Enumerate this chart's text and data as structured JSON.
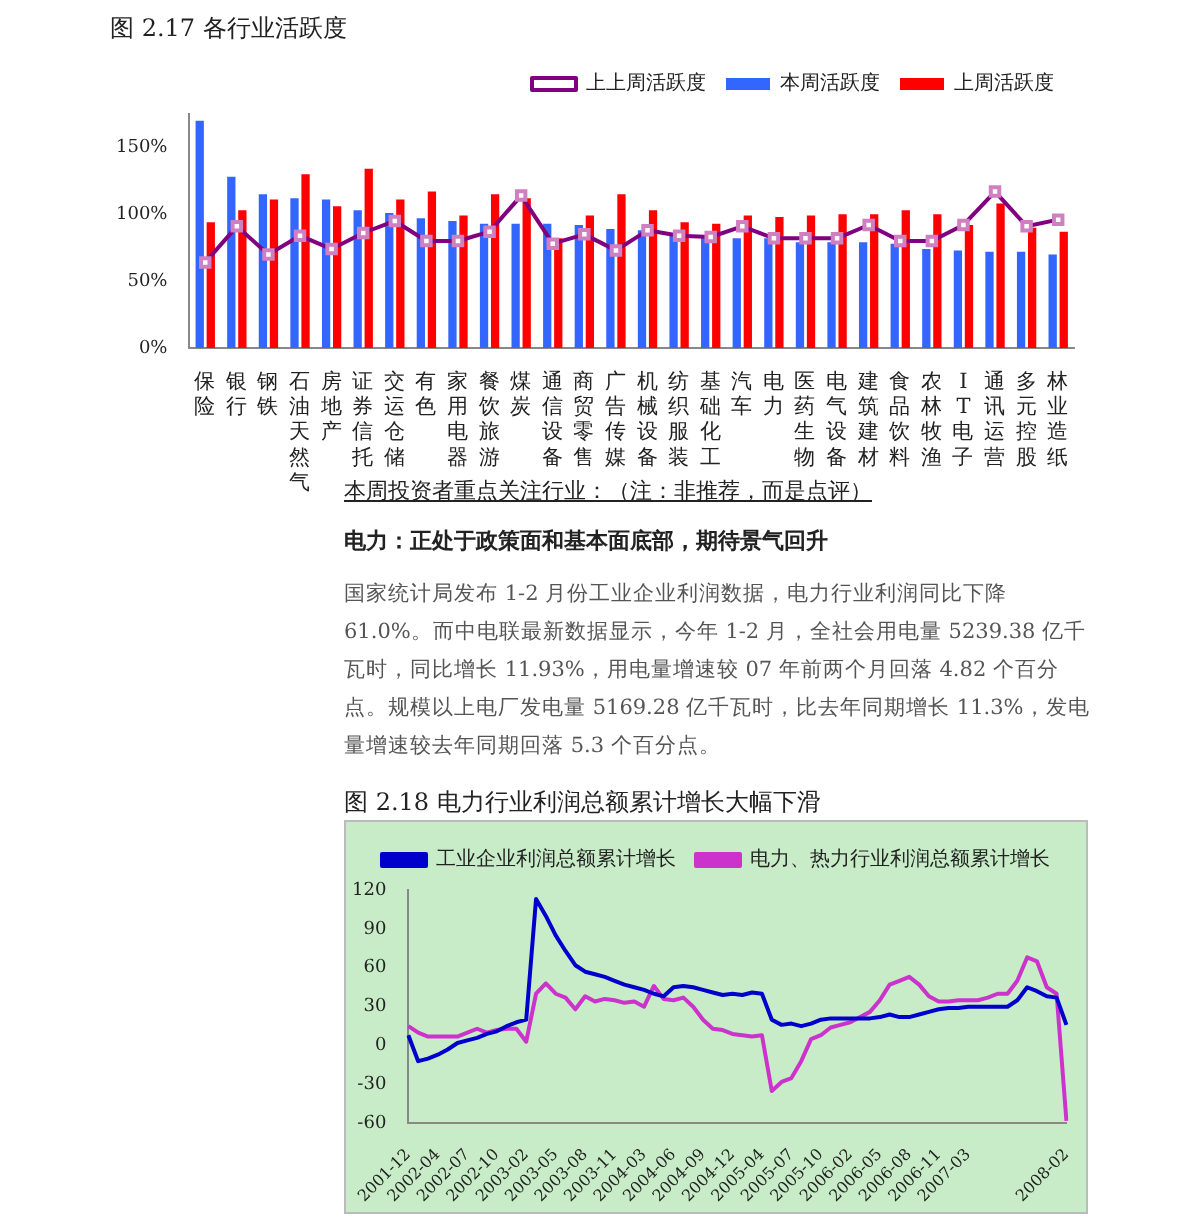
{
  "chart_data": [
    {
      "type": "bar",
      "title": "图 2.17    各行业活跃度",
      "categories": [
        "保险",
        "银行",
        "钢铁",
        "石油天然气",
        "房地产",
        "证券信托",
        "交运仓储",
        "有色",
        "家用电器",
        "餐饮旅游",
        "煤炭",
        "通信设备",
        "商贸零售",
        "广告传媒",
        "机械设备",
        "纺织服装",
        "基础化工",
        "汽车",
        "电力",
        "医药生物",
        "电气设备",
        "建筑建材",
        "食品饮料",
        "农林牧渔",
        "IT电子",
        "通讯运营",
        "多元控股",
        "林业造纸"
      ],
      "series": [
        {
          "name": "本周活跃度",
          "color": "#3366ff",
          "values": [
            170,
            128,
            115,
            112,
            111,
            103,
            101,
            97,
            95,
            93,
            93,
            93,
            92,
            89,
            88,
            85,
            84,
            82,
            82,
            79,
            79,
            79,
            78,
            74,
            73,
            72,
            72,
            70
          ]
        },
        {
          "name": "上周活跃度",
          "color": "#ff0000",
          "values": [
            94,
            103,
            111,
            130,
            106,
            134,
            111,
            117,
            99,
            115,
            112,
            82,
            99,
            115,
            103,
            94,
            93,
            99,
            98,
            99,
            100,
            100,
            103,
            100,
            92,
            108,
            90,
            87
          ]
        },
        {
          "name": "上上周活跃度",
          "type": "line",
          "color": "#800080",
          "marker": "square",
          "values": [
            64,
            91,
            70,
            84,
            74,
            86,
            95,
            80,
            80,
            87,
            114,
            78,
            85,
            73,
            88,
            84,
            83,
            91,
            82,
            82,
            82,
            92,
            80,
            80,
            92,
            117,
            91,
            96
          ]
        }
      ],
      "ylim": [
        0,
        175
      ],
      "yticks": [
        {
          "value": 0,
          "label": "0%"
        },
        {
          "value": 50,
          "label": "50%"
        },
        {
          "value": 100,
          "label": "100%"
        },
        {
          "value": 150,
          "label": "150%"
        }
      ],
      "grid": false,
      "legend": "top right"
    },
    {
      "type": "line",
      "title": "图  2.18    电力行业利润总额累计增长大幅下滑",
      "annotations": [
        "本周投资者重点关注行业：（注：非推荐，而是点评）",
        "电力：正处于政策面和基本面底部，期待景气回升",
        "国家统计局发布 1-2 月份工业企业利润数据，电力行业利润同比下降 61.0%。而中电联最新数据显示，今年 1-2 月，全社会用电量 5239.38 亿千瓦时，同比增长 11.93%，用电量增速较 07 年前两个月回落 4.82 个百分点。规模以上电厂发电量 5169.28 亿千瓦时，比去年同期增长 11.3%，发电量增速较去年同期回落 5.3 个百分点。"
      ],
      "categories": [
        "2001-12",
        null,
        null,
        "2002-04",
        null,
        null,
        "2002-07",
        null,
        null,
        "2002-10",
        null,
        null,
        "2003-02",
        null,
        null,
        "2003-05",
        null,
        null,
        "2003-08",
        null,
        null,
        "2003-11",
        null,
        null,
        "2004-03",
        null,
        null,
        "2004-06",
        null,
        null,
        "2004-09",
        null,
        null,
        "2004-12",
        null,
        null,
        "2005-04",
        null,
        null,
        "2005-07",
        null,
        null,
        "2005-10",
        null,
        null,
        "2006-02",
        null,
        null,
        "2006-05",
        null,
        null,
        "2006-08",
        null,
        null,
        "2006-11",
        null,
        null,
        "2007-03",
        null,
        null,
        null,
        null,
        null,
        null,
        null,
        null,
        null,
        "2008-02"
      ],
      "series": [
        {
          "name": "工业企业利润总额累计增长",
          "color": "#0000cc",
          "values": [
            8,
            -12,
            -10,
            -7,
            -3,
            2,
            4,
            6,
            9,
            11,
            15,
            18,
            20,
            113,
            100,
            85,
            73,
            62,
            57,
            55,
            53,
            50,
            47,
            45,
            43,
            40,
            38,
            45,
            46,
            45,
            43,
            41,
            39,
            40,
            39,
            41,
            40,
            20,
            16,
            17,
            15,
            17,
            20,
            21,
            21,
            21,
            21,
            21,
            22,
            24,
            22,
            22,
            24,
            26,
            28,
            29,
            29,
            30,
            30,
            30,
            30,
            30,
            35,
            45,
            42,
            38,
            37,
            16
          ]
        },
        {
          "name": "电力、热力行业利润总额累计增长",
          "color": "#cc33cc",
          "values": [
            15,
            10,
            7,
            7,
            7,
            7,
            10,
            13,
            10,
            12,
            13,
            13,
            3,
            40,
            48,
            40,
            37,
            28,
            38,
            34,
            36,
            35,
            33,
            34,
            30,
            46,
            36,
            35,
            37,
            30,
            20,
            13,
            12,
            9,
            8,
            7,
            8,
            -35,
            -28,
            -25,
            -12,
            5,
            8,
            14,
            16,
            18,
            22,
            26,
            35,
            47,
            50,
            53,
            47,
            38,
            34,
            34,
            35,
            35,
            35,
            37,
            40,
            40,
            50,
            68,
            65,
            45,
            40,
            -58
          ]
        }
      ],
      "ylim": [
        -60,
        120
      ],
      "yticks": [
        -60,
        -30,
        0,
        30,
        60,
        90,
        120
      ],
      "grid": false,
      "legend": "top right",
      "marker": "none"
    }
  ]
}
